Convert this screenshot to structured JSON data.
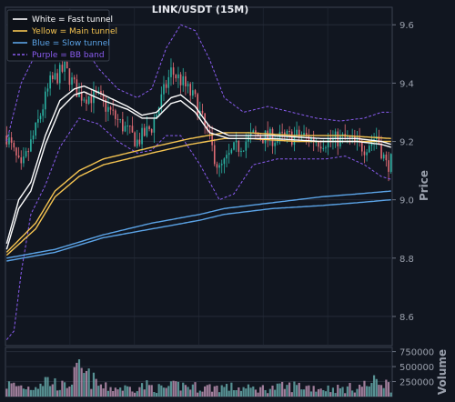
{
  "chart_data": {
    "type": "candlestick",
    "title": "LINK/USDT (15M)",
    "ylabel": "Price",
    "volume_ylabel": "Volume",
    "ylim": [
      8.5,
      9.66
    ],
    "yticks": [
      8.6,
      8.8,
      9.0,
      9.2,
      9.4,
      9.6
    ],
    "ytick_labels": [
      "8.6",
      "8.8",
      "9.0",
      "9.2",
      "9.4",
      "9.6"
    ],
    "volume_ylim": [
      0,
      820000
    ],
    "volume_yticks": [
      250000,
      500000,
      750000
    ],
    "volume_ytick_labels": [
      "250000",
      "500000",
      "750000"
    ],
    "bar_count": 160,
    "grid": true,
    "legend_position": "top-left",
    "colors": {
      "background": "#111620",
      "grid": "#252b38",
      "up": "#2bb3a3",
      "down": "#e06c75",
      "volume_up": "#5f9ea0",
      "volume_down": "#b08aa8",
      "fast": "#ffffff",
      "main": "#f5c451",
      "slow": "#5ba3e6",
      "bb": "#8a5cf0"
    },
    "legend": [
      {
        "label": "White = Fast tunnel",
        "color": "#ffffff",
        "dashed": false
      },
      {
        "label": "Yellow = Main tunnel",
        "color": "#f5c451",
        "dashed": false
      },
      {
        "label": "Blue = Slow tunnel",
        "color": "#5ba3e6",
        "dashed": false
      },
      {
        "label": "Purple = BB band",
        "color": "#8a5cf0",
        "dashed": true
      }
    ],
    "price_anchors": [
      [
        0,
        9.22
      ],
      [
        6,
        9.1
      ],
      [
        12,
        9.24
      ],
      [
        18,
        9.4
      ],
      [
        24,
        9.45
      ],
      [
        30,
        9.36
      ],
      [
        38,
        9.35
      ],
      [
        46,
        9.27
      ],
      [
        54,
        9.2
      ],
      [
        60,
        9.25
      ],
      [
        68,
        9.44
      ],
      [
        72,
        9.41
      ],
      [
        78,
        9.34
      ],
      [
        84,
        9.2
      ],
      [
        88,
        9.1
      ],
      [
        94,
        9.17
      ],
      [
        102,
        9.22
      ],
      [
        112,
        9.21
      ],
      [
        122,
        9.22
      ],
      [
        130,
        9.2
      ],
      [
        140,
        9.21
      ],
      [
        148,
        9.18
      ],
      [
        153,
        9.22
      ],
      [
        157,
        9.12
      ],
      [
        159,
        9.13
      ]
    ],
    "fast_tunnel": {
      "upper": [
        [
          0,
          8.85
        ],
        [
          5,
          9.0
        ],
        [
          10,
          9.06
        ],
        [
          16,
          9.22
        ],
        [
          22,
          9.34
        ],
        [
          28,
          9.38
        ],
        [
          32,
          9.39
        ],
        [
          40,
          9.36
        ],
        [
          50,
          9.32
        ],
        [
          56,
          9.29
        ],
        [
          62,
          9.3
        ],
        [
          68,
          9.35
        ],
        [
          72,
          9.36
        ],
        [
          78,
          9.32
        ],
        [
          84,
          9.25
        ],
        [
          92,
          9.22
        ],
        [
          110,
          9.22
        ],
        [
          130,
          9.21
        ],
        [
          145,
          9.21
        ],
        [
          155,
          9.2
        ],
        [
          159,
          9.19
        ]
      ],
      "lower": [
        [
          0,
          8.83
        ],
        [
          5,
          8.97
        ],
        [
          10,
          9.03
        ],
        [
          16,
          9.19
        ],
        [
          22,
          9.31
        ],
        [
          28,
          9.36
        ],
        [
          32,
          9.37
        ],
        [
          40,
          9.34
        ],
        [
          50,
          9.31
        ],
        [
          56,
          9.28
        ],
        [
          62,
          9.28
        ],
        [
          68,
          9.33
        ],
        [
          72,
          9.34
        ],
        [
          78,
          9.3
        ],
        [
          84,
          9.23
        ],
        [
          92,
          9.21
        ],
        [
          110,
          9.21
        ],
        [
          130,
          9.2
        ],
        [
          145,
          9.2
        ],
        [
          155,
          9.19
        ],
        [
          159,
          9.18
        ]
      ]
    },
    "main_tunnel": {
      "upper": [
        [
          0,
          8.82
        ],
        [
          12,
          8.92
        ],
        [
          20,
          9.03
        ],
        [
          30,
          9.1
        ],
        [
          40,
          9.14
        ],
        [
          60,
          9.18
        ],
        [
          76,
          9.21
        ],
        [
          90,
          9.23
        ],
        [
          100,
          9.23
        ],
        [
          120,
          9.22
        ],
        [
          140,
          9.22
        ],
        [
          159,
          9.21
        ]
      ],
      "lower": [
        [
          0,
          8.81
        ],
        [
          12,
          8.9
        ],
        [
          20,
          9.01
        ],
        [
          30,
          9.08
        ],
        [
          40,
          9.12
        ],
        [
          60,
          9.16
        ],
        [
          76,
          9.19
        ],
        [
          90,
          9.21
        ],
        [
          100,
          9.21
        ],
        [
          120,
          9.2
        ],
        [
          140,
          9.2
        ],
        [
          159,
          9.2
        ]
      ]
    },
    "slow_tunnel": {
      "upper": [
        [
          0,
          8.8
        ],
        [
          20,
          8.83
        ],
        [
          40,
          8.88
        ],
        [
          60,
          8.92
        ],
        [
          80,
          8.95
        ],
        [
          90,
          8.97
        ],
        [
          110,
          8.99
        ],
        [
          130,
          9.01
        ],
        [
          145,
          9.02
        ],
        [
          159,
          9.03
        ]
      ],
      "lower": [
        [
          0,
          8.79
        ],
        [
          20,
          8.82
        ],
        [
          40,
          8.87
        ],
        [
          60,
          8.9
        ],
        [
          80,
          8.93
        ],
        [
          90,
          8.95
        ],
        [
          110,
          8.97
        ],
        [
          130,
          8.98
        ],
        [
          145,
          8.99
        ],
        [
          159,
          9.0
        ]
      ]
    },
    "bb_band": {
      "upper": [
        [
          0,
          9.2
        ],
        [
          6,
          9.4
        ],
        [
          12,
          9.5
        ],
        [
          18,
          9.6
        ],
        [
          22,
          9.62
        ],
        [
          30,
          9.55
        ],
        [
          38,
          9.45
        ],
        [
          46,
          9.38
        ],
        [
          54,
          9.35
        ],
        [
          60,
          9.38
        ],
        [
          66,
          9.52
        ],
        [
          72,
          9.6
        ],
        [
          78,
          9.58
        ],
        [
          84,
          9.48
        ],
        [
          90,
          9.35
        ],
        [
          98,
          9.3
        ],
        [
          108,
          9.32
        ],
        [
          118,
          9.3
        ],
        [
          128,
          9.28
        ],
        [
          138,
          9.27
        ],
        [
          148,
          9.28
        ],
        [
          155,
          9.3
        ],
        [
          159,
          9.3
        ]
      ],
      "lower": [
        [
          0,
          8.52
        ],
        [
          3,
          8.55
        ],
        [
          6,
          8.75
        ],
        [
          10,
          8.95
        ],
        [
          16,
          9.05
        ],
        [
          22,
          9.18
        ],
        [
          30,
          9.28
        ],
        [
          38,
          9.26
        ],
        [
          46,
          9.2
        ],
        [
          54,
          9.16
        ],
        [
          60,
          9.17
        ],
        [
          66,
          9.22
        ],
        [
          72,
          9.22
        ],
        [
          80,
          9.12
        ],
        [
          88,
          9.0
        ],
        [
          94,
          9.02
        ],
        [
          102,
          9.12
        ],
        [
          112,
          9.14
        ],
        [
          122,
          9.14
        ],
        [
          132,
          9.14
        ],
        [
          140,
          9.15
        ],
        [
          148,
          9.12
        ],
        [
          155,
          9.08
        ],
        [
          159,
          9.07
        ]
      ]
    },
    "volume_anchors": [
      [
        0,
        200000
      ],
      [
        10,
        150000
      ],
      [
        16,
        280000
      ],
      [
        24,
        160000
      ],
      [
        30,
        420000
      ],
      [
        40,
        150000
      ],
      [
        50,
        140000
      ],
      [
        58,
        180000
      ],
      [
        64,
        130000
      ],
      [
        72,
        190000
      ],
      [
        80,
        150000
      ],
      [
        90,
        160000
      ],
      [
        100,
        130000
      ],
      [
        110,
        140000
      ],
      [
        120,
        180000
      ],
      [
        130,
        140000
      ],
      [
        140,
        130000
      ],
      [
        150,
        200000
      ],
      [
        155,
        280000
      ],
      [
        159,
        150000
      ]
    ]
  }
}
